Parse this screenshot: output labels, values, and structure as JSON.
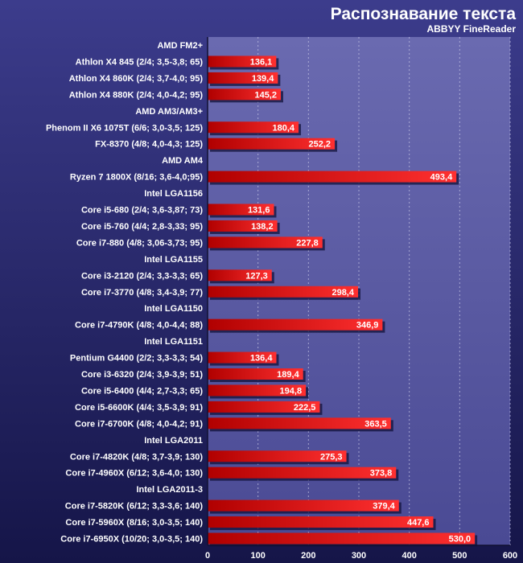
{
  "chart_data": {
    "type": "bar",
    "orientation": "horizontal",
    "title": "Распознавание текста",
    "subtitle": "ABBYY FineReader",
    "xlim": [
      0,
      600
    ],
    "x_ticks": [
      "0",
      "100",
      "200",
      "300",
      "400",
      "500",
      "600"
    ],
    "grid": true,
    "rows": [
      {
        "kind": "group",
        "label": "AMD FM2+"
      },
      {
        "kind": "bar",
        "label": "Athlon X4 845 (2/4; 3,5-3,8; 65)",
        "value": 136.1,
        "value_label": "136,1"
      },
      {
        "kind": "bar",
        "label": "Athlon X4 860K (2/4; 3,7-4,0; 95)",
        "value": 139.4,
        "value_label": "139,4"
      },
      {
        "kind": "bar",
        "label": "Athlon X4 880K (2/4; 4,0-4,2; 95)",
        "value": 145.2,
        "value_label": "145,2"
      },
      {
        "kind": "group",
        "label": "AMD AM3/AM3+"
      },
      {
        "kind": "bar",
        "label": "Phenom II X6 1075T (6/6; 3,0-3,5; 125)",
        "value": 180.4,
        "value_label": "180,4"
      },
      {
        "kind": "bar",
        "label": "FX-8370 (4/8; 4,0-4,3; 125)",
        "value": 252.2,
        "value_label": "252,2"
      },
      {
        "kind": "group",
        "label": "AMD AM4"
      },
      {
        "kind": "bar",
        "label": "Ryzen 7 1800X (8/16; 3,6-4,0;95)",
        "value": 493.4,
        "value_label": "493,4"
      },
      {
        "kind": "group",
        "label": "Intel LGA1156"
      },
      {
        "kind": "bar",
        "label": "Core i5-680 (2/4; 3,6-3,87; 73)",
        "value": 131.6,
        "value_label": "131,6"
      },
      {
        "kind": "bar",
        "label": "Core i5-760 (4/4; 2,8-3,33; 95)",
        "value": 138.2,
        "value_label": "138,2"
      },
      {
        "kind": "bar",
        "label": "Core i7-880 (4/8; 3,06-3,73; 95)",
        "value": 227.8,
        "value_label": "227,8"
      },
      {
        "kind": "group",
        "label": "Intel LGA1155"
      },
      {
        "kind": "bar",
        "label": "Core i3-2120 (2/4; 3,3-3,3; 65)",
        "value": 127.3,
        "value_label": "127,3"
      },
      {
        "kind": "bar",
        "label": "Core i7-3770 (4/8; 3,4-3,9; 77)",
        "value": 298.4,
        "value_label": "298,4"
      },
      {
        "kind": "group",
        "label": "Intel LGA1150"
      },
      {
        "kind": "bar",
        "label": "Core i7-4790K (4/8; 4,0-4,4; 88)",
        "value": 346.9,
        "value_label": "346,9"
      },
      {
        "kind": "group",
        "label": "Intel LGA1151"
      },
      {
        "kind": "bar",
        "label": "Pentium G4400 (2/2; 3,3-3,3; 54)",
        "value": 136.4,
        "value_label": "136,4"
      },
      {
        "kind": "bar",
        "label": "Core i3-6320 (2/4; 3,9-3,9; 51)",
        "value": 189.4,
        "value_label": "189,4"
      },
      {
        "kind": "bar",
        "label": "Core i5-6400 (4/4; 2,7-3,3; 65)",
        "value": 194.8,
        "value_label": "194,8"
      },
      {
        "kind": "bar",
        "label": "Core i5-6600K (4/4; 3,5-3,9; 91)",
        "value": 222.5,
        "value_label": "222,5"
      },
      {
        "kind": "bar",
        "label": "Core i7-6700K (4/8; 4,0-4,2; 91)",
        "value": 363.5,
        "value_label": "363,5"
      },
      {
        "kind": "group",
        "label": "Intel LGA2011"
      },
      {
        "kind": "bar",
        "label": "Core i7-4820K (4/8; 3,7-3,9; 130)",
        "value": 275.3,
        "value_label": "275,3"
      },
      {
        "kind": "bar",
        "label": "Core i7-4960X (6/12; 3,6-4,0; 130)",
        "value": 373.8,
        "value_label": "373,8"
      },
      {
        "kind": "group",
        "label": "Intel LGA2011-3"
      },
      {
        "kind": "bar",
        "label": "Core i7-5820K (6/12; 3,3-3,6; 140)",
        "value": 379.4,
        "value_label": "379,4"
      },
      {
        "kind": "bar",
        "label": "Core i7-5960X (8/16; 3,0-3,5; 140)",
        "value": 447.6,
        "value_label": "447,6"
      },
      {
        "kind": "bar",
        "label": "Core i7-6950X (10/20; 3,0-3,5; 140)",
        "value": 530.0,
        "value_label": "530,0"
      }
    ],
    "colors": {
      "background": "#1b1b52",
      "plot_top": "#6a6ab0",
      "plot_bottom": "#4a4a94",
      "bar_light": "#ff3030",
      "bar_dark": "#b00000",
      "bar_shadow": "#12123a",
      "text": "#ffffff",
      "grid": "#c8c8e6"
    }
  }
}
